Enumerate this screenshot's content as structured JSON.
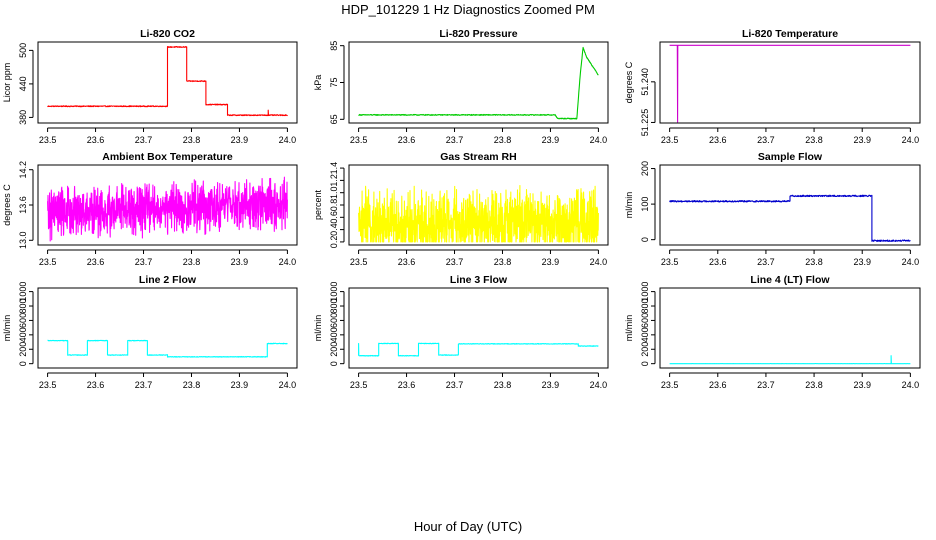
{
  "title": "HDP_101229  1 Hz Diagnostics Zoomed PM",
  "xlabel": "Hour of Day (UTC)",
  "chart_data": [
    {
      "type": "line",
      "title": "Li-820 CO2",
      "ylabel": "Licor ppm",
      "color": "#ff0000",
      "xlim": [
        23.5,
        24.0
      ],
      "xticks": [
        23.5,
        23.6,
        23.7,
        23.8,
        23.9,
        24.0
      ],
      "xtick_labels": [
        "23.5",
        "23.6",
        "23.7",
        "23.8",
        "23.9",
        "24.0"
      ],
      "ylim": [
        370,
        515
      ],
      "yticks": [
        380,
        440,
        500
      ],
      "ytick_labels": [
        "380",
        "440",
        "500"
      ],
      "signal": {
        "kind": "step",
        "noise": 0.8,
        "segments": [
          [
            23.5,
            23.75,
            400
          ],
          [
            23.75,
            23.79,
            506
          ],
          [
            23.79,
            23.83,
            445
          ],
          [
            23.83,
            23.875,
            403
          ],
          [
            23.875,
            24.0,
            384
          ]
        ],
        "spikes": [
          [
            23.96,
            393
          ]
        ]
      }
    },
    {
      "type": "line",
      "title": "Li-820 Pressure",
      "ylabel": "kPa",
      "color": "#00cc00",
      "xlim": [
        23.5,
        24.0
      ],
      "xticks": [
        23.5,
        23.6,
        23.7,
        23.8,
        23.9,
        24.0
      ],
      "xtick_labels": [
        "23.5",
        "23.6",
        "23.7",
        "23.8",
        "23.9",
        "24.0"
      ],
      "ylim": [
        64,
        86
      ],
      "yticks": [
        65,
        75,
        85
      ],
      "ytick_labels": [
        "65",
        "75",
        "85"
      ],
      "signal": {
        "kind": "path",
        "noise": 0.12,
        "points": [
          [
            23.5,
            66.2
          ],
          [
            23.91,
            66.2
          ],
          [
            23.915,
            65.2
          ],
          [
            23.955,
            65.2
          ],
          [
            23.962,
            77
          ],
          [
            23.968,
            84.5
          ],
          [
            23.975,
            82
          ],
          [
            24.0,
            77
          ]
        ]
      }
    },
    {
      "type": "line",
      "title": "Li-820 Temperature",
      "ylabel": "degrees C",
      "color": "#cc00cc",
      "xlim": [
        23.5,
        24.0
      ],
      "xticks": [
        23.5,
        23.6,
        23.7,
        23.8,
        23.9,
        24.0
      ],
      "xtick_labels": [
        "23.5",
        "23.6",
        "23.7",
        "23.8",
        "23.9",
        "24.0"
      ],
      "ylim": [
        51.2248,
        51.2547
      ],
      "yticks": [
        51.225,
        51.24
      ],
      "ytick_labels": [
        "51.225",
        "51.240"
      ],
      "signal": {
        "kind": "path",
        "noise": 0,
        "points": [
          [
            23.5,
            51.2535
          ],
          [
            23.516,
            51.2535
          ],
          [
            23.5165,
            51.2248
          ],
          [
            23.517,
            51.2535
          ],
          [
            24.0,
            51.2535
          ]
        ]
      }
    },
    {
      "type": "line",
      "title": "Ambient Box Temperature",
      "ylabel": "degrees C",
      "color": "#ff00ff",
      "xlim": [
        23.5,
        24.0
      ],
      "xticks": [
        23.5,
        23.6,
        23.7,
        23.8,
        23.9,
        24.0
      ],
      "xtick_labels": [
        "23.5",
        "23.6",
        "23.7",
        "23.8",
        "23.9",
        "24.0"
      ],
      "ylim": [
        12.92,
        14.28
      ],
      "yticks": [
        13.0,
        13.6,
        14.2
      ],
      "ytick_labels": [
        "13.0",
        "13.6",
        "14.2"
      ],
      "signal": {
        "kind": "noise",
        "lo": 12.95,
        "hi": 14.25,
        "base_start": 13.45,
        "base_end": 13.62,
        "amp": 0.5
      }
    },
    {
      "type": "line",
      "title": "Gas Stream RH",
      "ylabel": "percent",
      "color": "#ffff00",
      "xlim": [
        23.5,
        24.0
      ],
      "xticks": [
        23.5,
        23.6,
        23.7,
        23.8,
        23.9,
        24.0
      ],
      "xtick_labels": [
        "23.5",
        "23.6",
        "23.7",
        "23.8",
        "23.9",
        "24.0"
      ],
      "ylim": [
        0.15,
        1.45
      ],
      "yticks": [
        0.2,
        0.4,
        0.6,
        0.8,
        1.0,
        1.2,
        1.4
      ],
      "ytick_labels": [
        "0.2",
        "0.4",
        "0.6",
        "0.8",
        "1.0",
        "1.2",
        "1.4"
      ],
      "signal": {
        "kind": "noise",
        "lo": 0.2,
        "hi": 1.4,
        "base_start": 0.5,
        "base_end": 0.5,
        "amp": 0.65
      }
    },
    {
      "type": "line",
      "title": "Sample Flow",
      "ylabel": "ml/min",
      "color": "#0000cc",
      "xlim": [
        23.5,
        24.0
      ],
      "xticks": [
        23.5,
        23.6,
        23.7,
        23.8,
        23.9,
        24.0
      ],
      "xtick_labels": [
        "23.5",
        "23.6",
        "23.7",
        "23.8",
        "23.9",
        "24.0"
      ],
      "ylim": [
        -15,
        210
      ],
      "yticks": [
        0,
        100,
        200
      ],
      "ytick_labels": [
        "0",
        "100",
        "200"
      ],
      "signal": {
        "kind": "step",
        "noise": 2,
        "segments": [
          [
            23.5,
            23.75,
            108
          ],
          [
            23.75,
            23.92,
            123
          ],
          [
            23.92,
            24.0,
            -3
          ]
        ]
      }
    },
    {
      "type": "line",
      "title": "Line 2 Flow",
      "ylabel": "ml/min",
      "color": "#00ffff",
      "xlim": [
        23.5,
        24.0
      ],
      "xticks": [
        23.5,
        23.6,
        23.7,
        23.8,
        23.9,
        24.0
      ],
      "xtick_labels": [
        "23.5",
        "23.6",
        "23.7",
        "23.8",
        "23.9",
        "24.0"
      ],
      "ylim": [
        -60,
        1050
      ],
      "yticks": [
        0,
        200,
        400,
        600,
        800,
        1000
      ],
      "ytick_labels": [
        "0",
        "200",
        "400",
        "600",
        "800",
        "1000"
      ],
      "signal": {
        "kind": "step",
        "noise": 4,
        "segments": [
          [
            23.5,
            23.542,
            320
          ],
          [
            23.542,
            23.583,
            120
          ],
          [
            23.583,
            23.625,
            320
          ],
          [
            23.625,
            23.667,
            120
          ],
          [
            23.667,
            23.708,
            320
          ],
          [
            23.708,
            23.75,
            120
          ],
          [
            23.75,
            23.958,
            95
          ],
          [
            23.958,
            24.0,
            280
          ]
        ]
      }
    },
    {
      "type": "line",
      "title": "Line 3 Flow",
      "ylabel": "ml/min",
      "color": "#00ffff",
      "xlim": [
        23.5,
        24.0
      ],
      "xticks": [
        23.5,
        23.6,
        23.7,
        23.8,
        23.9,
        24.0
      ],
      "xtick_labels": [
        "23.5",
        "23.6",
        "23.7",
        "23.8",
        "23.9",
        "24.0"
      ],
      "ylim": [
        -60,
        1050
      ],
      "yticks": [
        0,
        200,
        400,
        600,
        800,
        1000
      ],
      "ytick_labels": [
        "0",
        "200",
        "400",
        "600",
        "800",
        "1000"
      ],
      "signal": {
        "kind": "step",
        "noise": 4,
        "segments": [
          [
            23.5,
            23.542,
            110
          ],
          [
            23.542,
            23.583,
            280
          ],
          [
            23.583,
            23.625,
            110
          ],
          [
            23.625,
            23.667,
            280
          ],
          [
            23.667,
            23.708,
            120
          ],
          [
            23.708,
            23.958,
            275
          ],
          [
            23.958,
            24.0,
            245
          ]
        ],
        "spikes": [
          [
            23.5,
            280
          ]
        ]
      }
    },
    {
      "type": "line",
      "title": "Line 4 (LT) Flow",
      "ylabel": "ml/min",
      "color": "#00ffff",
      "xlim": [
        23.5,
        24.0
      ],
      "xticks": [
        23.5,
        23.6,
        23.7,
        23.8,
        23.9,
        24.0
      ],
      "xtick_labels": [
        "23.5",
        "23.6",
        "23.7",
        "23.8",
        "23.9",
        "24.0"
      ],
      "ylim": [
        -60,
        1050
      ],
      "yticks": [
        0,
        200,
        400,
        600,
        800,
        1000
      ],
      "ytick_labels": [
        "0",
        "200",
        "400",
        "600",
        "800",
        "1000"
      ],
      "signal": {
        "kind": "step",
        "noise": 1,
        "segments": [
          [
            23.5,
            24.0,
            0
          ]
        ],
        "spikes": [
          [
            23.96,
            110
          ]
        ]
      }
    }
  ]
}
